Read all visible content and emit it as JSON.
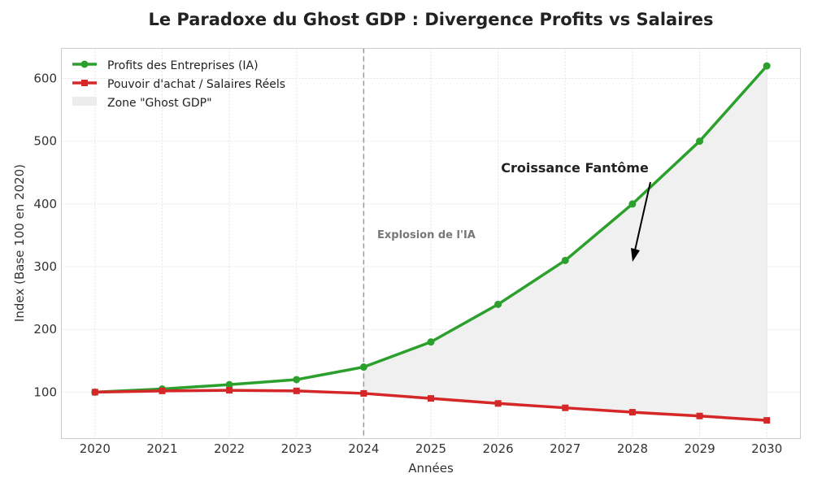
{
  "chart_data": {
    "type": "line",
    "title": "Le Paradoxe du Ghost GDP : Divergence Profits vs Salaires",
    "xlabel": "Années",
    "ylabel": "Index (Base 100 en 2020)",
    "x": [
      2020,
      2021,
      2022,
      2023,
      2024,
      2025,
      2026,
      2027,
      2028,
      2029,
      2030
    ],
    "xlim": [
      2019.5,
      2030.5
    ],
    "ylim": [
      26,
      648
    ],
    "xticks": [
      2020,
      2021,
      2022,
      2023,
      2024,
      2025,
      2026,
      2027,
      2028,
      2029,
      2030
    ],
    "yticks": [
      100,
      200,
      300,
      400,
      500,
      600
    ],
    "grid": true,
    "legend_position": "top-left",
    "series": [
      {
        "name": "Profits des Entreprises (IA)",
        "color": "#2ca02c",
        "marker": "circle",
        "values": [
          100,
          105,
          112,
          120,
          140,
          180,
          240,
          310,
          400,
          500,
          620
        ]
      },
      {
        "name": "Pouvoir d'achat / Salaires Réels",
        "color": "#d62728",
        "marker": "square",
        "values": [
          100,
          102,
          103,
          102,
          98,
          90,
          82,
          75,
          68,
          62,
          55
        ]
      }
    ],
    "fill": {
      "name": "Zone \"Ghost GDP\"",
      "color": "#f0f0f0",
      "from_x": 2024,
      "to_x": 2030
    },
    "vline": {
      "x": 2024,
      "label": "Explosion de l'IA"
    },
    "annotation": {
      "text": "Croissance Fantôme"
    }
  }
}
